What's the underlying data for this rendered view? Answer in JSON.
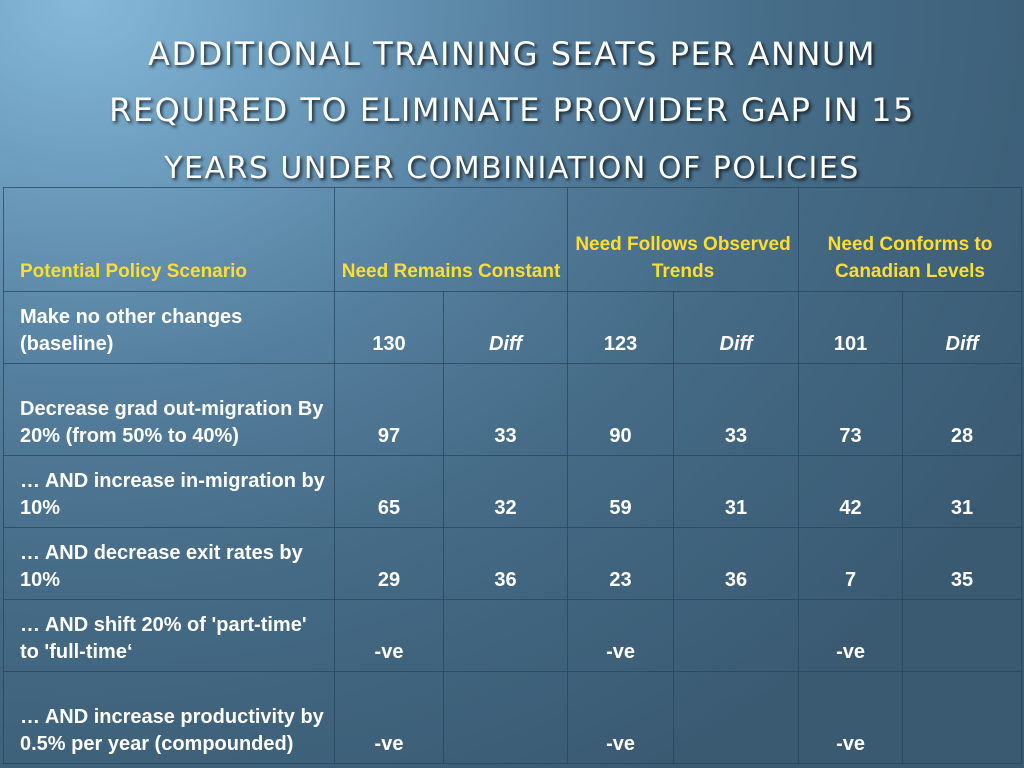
{
  "title": {
    "line1": "ADDITIONAL TRAINING SEATS PER ANNUM",
    "line2": "REQUIRED TO ELIMINATE PROVIDER GAP IN 15",
    "line3": "YEARS UNDER COMBINIATION OF POLICIES"
  },
  "table": {
    "headers": {
      "scenario": "Potential Policy Scenario",
      "constant": "Need Remains Constant",
      "trends": "Need Follows Observed Trends",
      "canadian": "Need Conforms to Canadian Levels"
    },
    "rows": [
      {
        "scenario": "Make no other changes (baseline)",
        "c1": "130",
        "c2": "Diff",
        "c3": "123",
        "c4": "Diff",
        "c5": "101",
        "c6": "Diff"
      },
      {
        "scenario": "Decrease grad out-migration By 20% (from 50% to 40%)",
        "c1": "97",
        "c2": "33",
        "c3": "90",
        "c4": "33",
        "c5": "73",
        "c6": "28"
      },
      {
        "scenario": "… AND increase in-migration by 10%",
        "c1": "65",
        "c2": "32",
        "c3": "59",
        "c4": "31",
        "c5": "42",
        "c6": "31"
      },
      {
        "scenario": "… AND decrease exit rates by 10%",
        "c1": "29",
        "c2": "36",
        "c3": "23",
        "c4": "36",
        "c5": "7",
        "c6": "35"
      },
      {
        "scenario": "… AND shift 20% of 'part-time' to 'full-time‘",
        "c1": "-ve",
        "c2": "",
        "c3": "-ve",
        "c4": "",
        "c5": "-ve",
        "c6": ""
      },
      {
        "scenario": "… AND increase productivity by 0.5% per year (compounded)",
        "c1": "-ve",
        "c2": "",
        "c3": "-ve",
        "c4": "",
        "c5": "-ve",
        "c6": ""
      }
    ]
  }
}
